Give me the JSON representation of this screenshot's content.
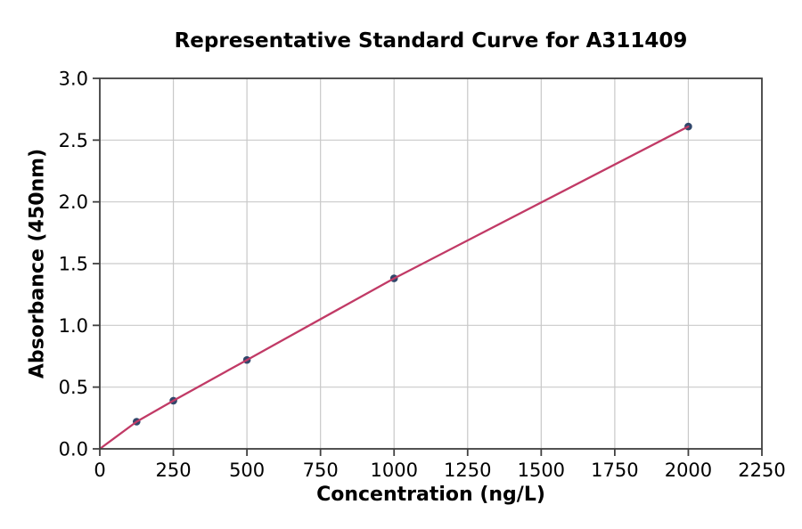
{
  "chart_data": {
    "type": "scatter",
    "title": "Representative Standard Curve for A311409",
    "xlabel": "Concentration (ng/L)",
    "ylabel": "Absorbance (450nm)",
    "x": [
      125,
      250,
      500,
      1000,
      2000
    ],
    "y": [
      0.22,
      0.39,
      0.72,
      1.38,
      2.61
    ],
    "line_start": [
      0,
      0
    ],
    "xlim": [
      0,
      2250
    ],
    "ylim": [
      0,
      3.0
    ],
    "x_ticks": [
      "0",
      "250",
      "500",
      "750",
      "1000",
      "1250",
      "1500",
      "1750",
      "2000",
      "2250"
    ],
    "y_ticks": [
      "0.0",
      "0.5",
      "1.0",
      "1.5",
      "2.0",
      "2.5",
      "3.0"
    ],
    "grid": true,
    "legend": "none",
    "colors": {
      "line": "#c13a66",
      "marker": "#31476b",
      "grid": "#c9c9c9",
      "spine": "#404040",
      "text": "#000000",
      "background": "#ffffff"
    }
  }
}
